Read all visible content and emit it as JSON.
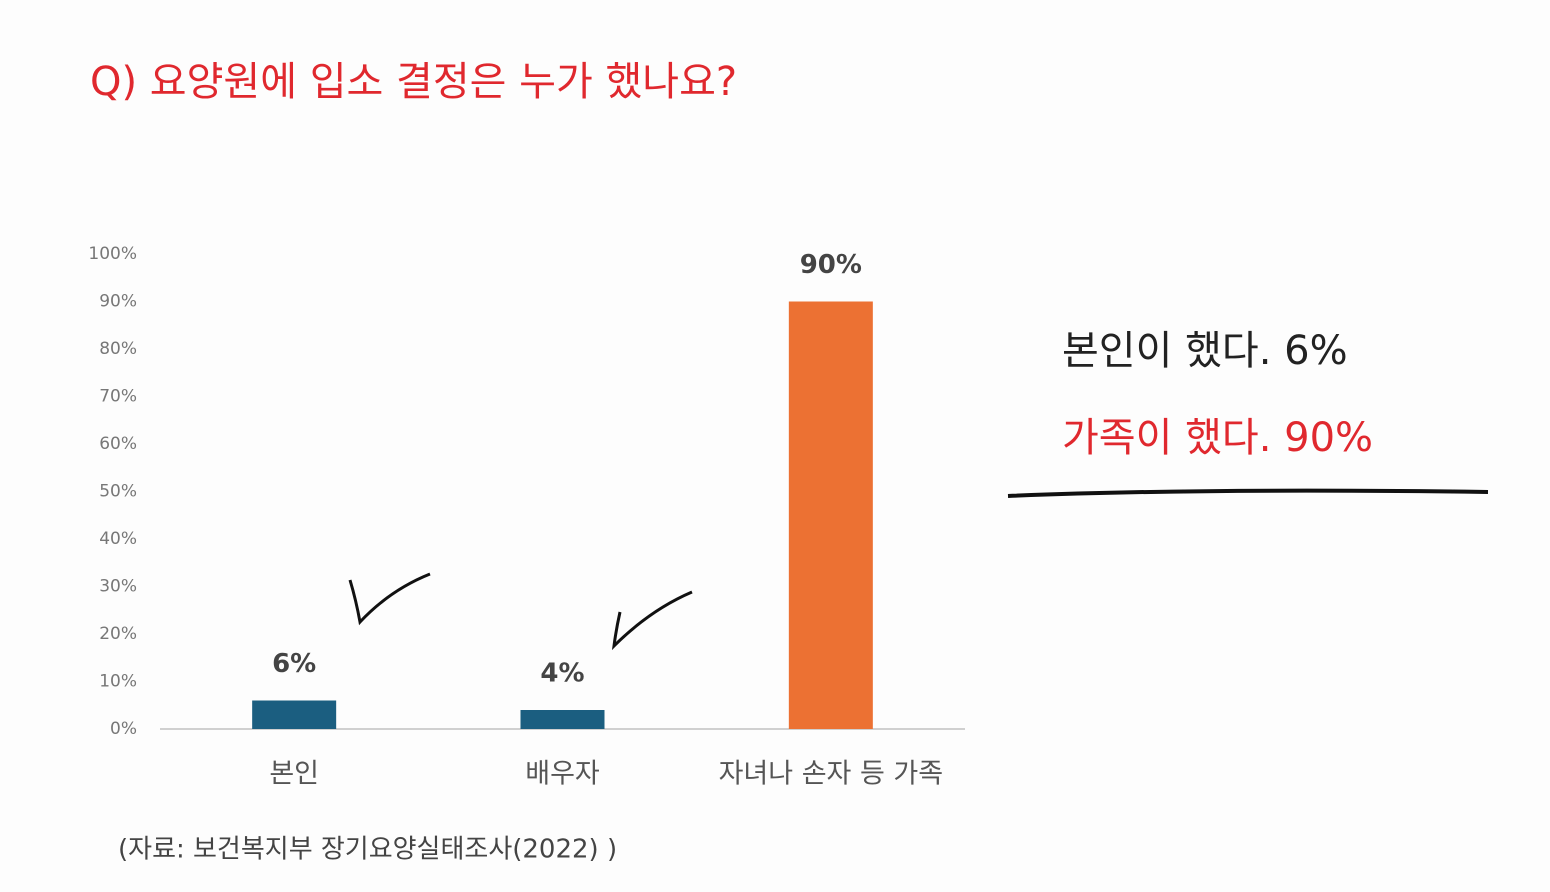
{
  "chart_data": {
    "type": "bar",
    "title": "Q) 요양원에 입소 결정은 누가 했나요?",
    "categories": [
      "본인",
      "배우자",
      "자녀나 손자 등 가족"
    ],
    "values": [
      6,
      4,
      90
    ],
    "value_labels": [
      "6%",
      "4%",
      "90%"
    ],
    "colors": [
      "#1b5e80",
      "#1b5e80",
      "#ec7133"
    ],
    "ylim": [
      0,
      100
    ],
    "yticks": [
      {
        "value": 0,
        "label": "0%"
      },
      {
        "value": 10,
        "label": "10%"
      },
      {
        "value": 20,
        "label": "20%"
      },
      {
        "value": 30,
        "label": "30%"
      },
      {
        "value": 40,
        "label": "40%"
      },
      {
        "value": 50,
        "label": "50%"
      },
      {
        "value": 60,
        "label": "60%"
      },
      {
        "value": 70,
        "label": "70%"
      },
      {
        "value": 80,
        "label": "80%"
      },
      {
        "value": 90,
        "label": "90%"
      },
      {
        "value": 100,
        "label": "100%"
      }
    ],
    "grid": false,
    "annotations": [
      "본인이 했다. 6%",
      "가족이 했다. 90%"
    ],
    "source": "(자료: 보건복지부 장기요양실태조사(2022) )"
  }
}
